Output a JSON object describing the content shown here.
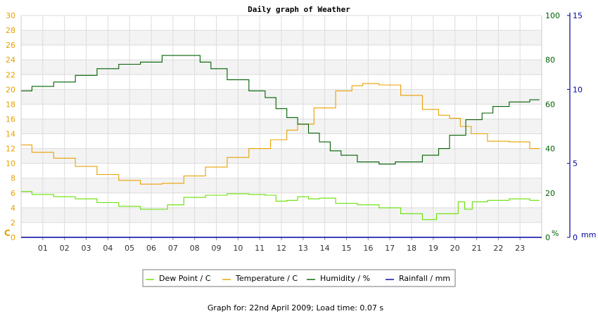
{
  "chart_data": {
    "type": "line",
    "title": "Daily graph of Weather",
    "footer": "Graph for: 22nd April 2009; Load time: 0.07 s",
    "x_tick_labels": [
      "01",
      "02",
      "03",
      "04",
      "05",
      "06",
      "07",
      "08",
      "09",
      "10",
      "11",
      "12",
      "13",
      "14",
      "15",
      "16",
      "17",
      "18",
      "19",
      "20",
      "21",
      "22",
      "23"
    ],
    "x_range": [
      0,
      24
    ],
    "grid": true,
    "legend_placement": "bottom-center",
    "axes": {
      "left": {
        "label": "C",
        "range": [
          0,
          30
        ],
        "ticks": [
          0,
          2,
          4,
          6,
          8,
          10,
          12,
          14,
          16,
          18,
          20,
          22,
          24,
          26,
          28,
          30
        ],
        "color": "#e8a000"
      },
      "right_humidity": {
        "label": "%",
        "range": [
          0,
          100
        ],
        "ticks": [
          0,
          20,
          40,
          60,
          80,
          100
        ],
        "color": "#006000"
      },
      "right_rain": {
        "label": "mm",
        "range": [
          0,
          15
        ],
        "ticks": [
          0,
          5,
          10,
          15
        ],
        "color": "#0000a0"
      }
    },
    "series": [
      {
        "name": "Dew Point / C",
        "axis": "left",
        "color": "#66e000",
        "x": [
          0,
          1,
          2,
          3,
          4,
          5,
          6,
          6.5,
          7,
          8,
          9,
          10,
          11,
          11.5,
          12,
          12.5,
          13,
          13.5,
          14,
          15,
          16,
          17,
          18,
          19,
          19.3,
          20,
          20.3,
          20.6,
          21,
          22,
          23,
          23.9
        ],
        "y": [
          6.2,
          5.8,
          5.5,
          5.2,
          4.7,
          4.2,
          3.8,
          3.8,
          4.4,
          5.4,
          5.7,
          5.9,
          5.8,
          5.7,
          4.9,
          5.0,
          5.5,
          5.2,
          5.3,
          4.6,
          4.4,
          4.0,
          3.2,
          2.4,
          3.2,
          3.2,
          4.8,
          3.8,
          4.8,
          5.0,
          5.2,
          5.0
        ]
      },
      {
        "name": "Temperature / C",
        "axis": "left",
        "color": "#e8a000",
        "x": [
          0,
          1,
          2,
          3,
          4,
          5,
          6,
          7,
          8,
          9,
          10,
          11,
          12,
          12.5,
          13,
          14,
          15,
          15.5,
          16,
          17,
          18,
          19,
          19.5,
          20,
          20.5,
          21,
          22,
          23,
          23.9
        ],
        "y": [
          12.5,
          11.5,
          10.7,
          9.6,
          8.5,
          7.7,
          7.2,
          7.3,
          8.3,
          9.5,
          10.8,
          12.0,
          13.2,
          14.5,
          15.3,
          17.5,
          19.8,
          20.5,
          20.8,
          20.6,
          19.2,
          17.3,
          16.5,
          16.1,
          15.0,
          14.0,
          13.0,
          12.9,
          12.0
        ]
      },
      {
        "name": "Humidity / %",
        "axis": "right_humidity",
        "color": "#006000",
        "x": [
          0,
          1,
          2,
          3,
          4,
          5,
          6,
          7,
          8,
          8.5,
          9,
          10,
          11,
          11.5,
          12,
          12.5,
          13,
          13.5,
          14,
          14.5,
          15,
          16,
          17,
          17.5,
          18,
          19,
          19.5,
          20,
          21,
          21.5,
          22,
          23,
          23.9
        ],
        "y": [
          66,
          68,
          70,
          73,
          76,
          78,
          79,
          82,
          82,
          79,
          76,
          71,
          66,
          63,
          58,
          54,
          51,
          47,
          43,
          39,
          37,
          34,
          33,
          34,
          34,
          37,
          40,
          46,
          53,
          56,
          59,
          61,
          62
        ]
      },
      {
        "name": "Rainfall / mm",
        "axis": "right_rain",
        "color": "#0000a0",
        "x": [
          0,
          24
        ],
        "y": [
          0,
          0
        ]
      }
    ]
  }
}
